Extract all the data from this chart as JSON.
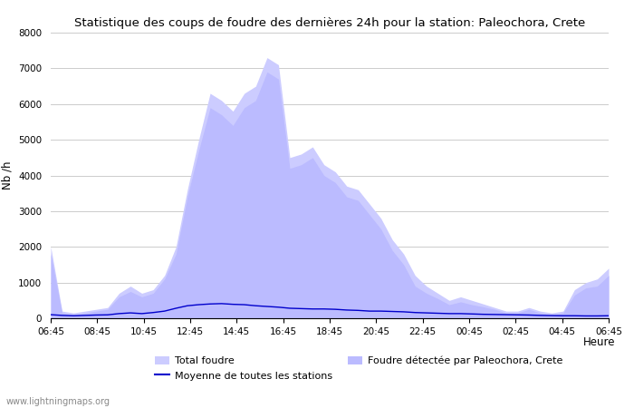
{
  "title": "Statistique des coups de foudre des dernières 24h pour la station: Paleochora, Crete",
  "ylabel": "Nb /h",
  "xlabel": "Heure",
  "ylim": [
    0,
    8000
  ],
  "yticks": [
    0,
    1000,
    2000,
    3000,
    4000,
    5000,
    6000,
    7000,
    8000
  ],
  "xtick_labels": [
    "06:45",
    "08:45",
    "10:45",
    "12:45",
    "14:45",
    "16:45",
    "18:45",
    "20:45",
    "22:45",
    "00:45",
    "02:45",
    "04:45",
    "06:45"
  ],
  "background_color": "#ffffff",
  "fill_color_total": "#ccccff",
  "fill_color_local": "#bbbbff",
  "line_color": "#0000cc",
  "watermark": "www.lightningmaps.org",
  "legend_total": "Total foudre",
  "legend_moyenne": "Moyenne de toutes les stations",
  "legend_local": "Foudre détectée par Paleochora, Crete",
  "total_foudre": [
    2000,
    200,
    150,
    200,
    250,
    300,
    700,
    900,
    700,
    800,
    1200,
    2000,
    3600,
    5000,
    6300,
    6100,
    5800,
    6300,
    6500,
    7300,
    7100,
    4500,
    4600,
    4800,
    4300,
    4100,
    3700,
    3600,
    3200,
    2800,
    2200,
    1800,
    1200,
    900,
    700,
    500,
    600,
    500,
    400,
    300,
    200,
    200,
    300,
    200,
    150,
    200,
    800,
    1000,
    1100,
    1400
  ],
  "local_foudre": [
    1800,
    150,
    100,
    150,
    200,
    250,
    600,
    750,
    600,
    700,
    1100,
    1800,
    3400,
    4700,
    5900,
    5700,
    5400,
    5900,
    6100,
    6900,
    6700,
    4200,
    4300,
    4500,
    4000,
    3800,
    3400,
    3300,
    2900,
    2500,
    1900,
    1500,
    900,
    700,
    550,
    380,
    460,
    380,
    320,
    250,
    150,
    150,
    250,
    150,
    100,
    150,
    650,
    850,
    900,
    1200
  ],
  "moyenne": [
    100,
    80,
    70,
    80,
    90,
    95,
    130,
    150,
    130,
    160,
    200,
    280,
    350,
    380,
    400,
    410,
    390,
    380,
    350,
    330,
    310,
    280,
    270,
    260,
    260,
    250,
    230,
    220,
    200,
    200,
    190,
    180,
    160,
    150,
    140,
    130,
    130,
    120,
    110,
    105,
    100,
    95,
    90,
    80,
    75,
    70,
    70,
    65,
    65,
    70
  ]
}
